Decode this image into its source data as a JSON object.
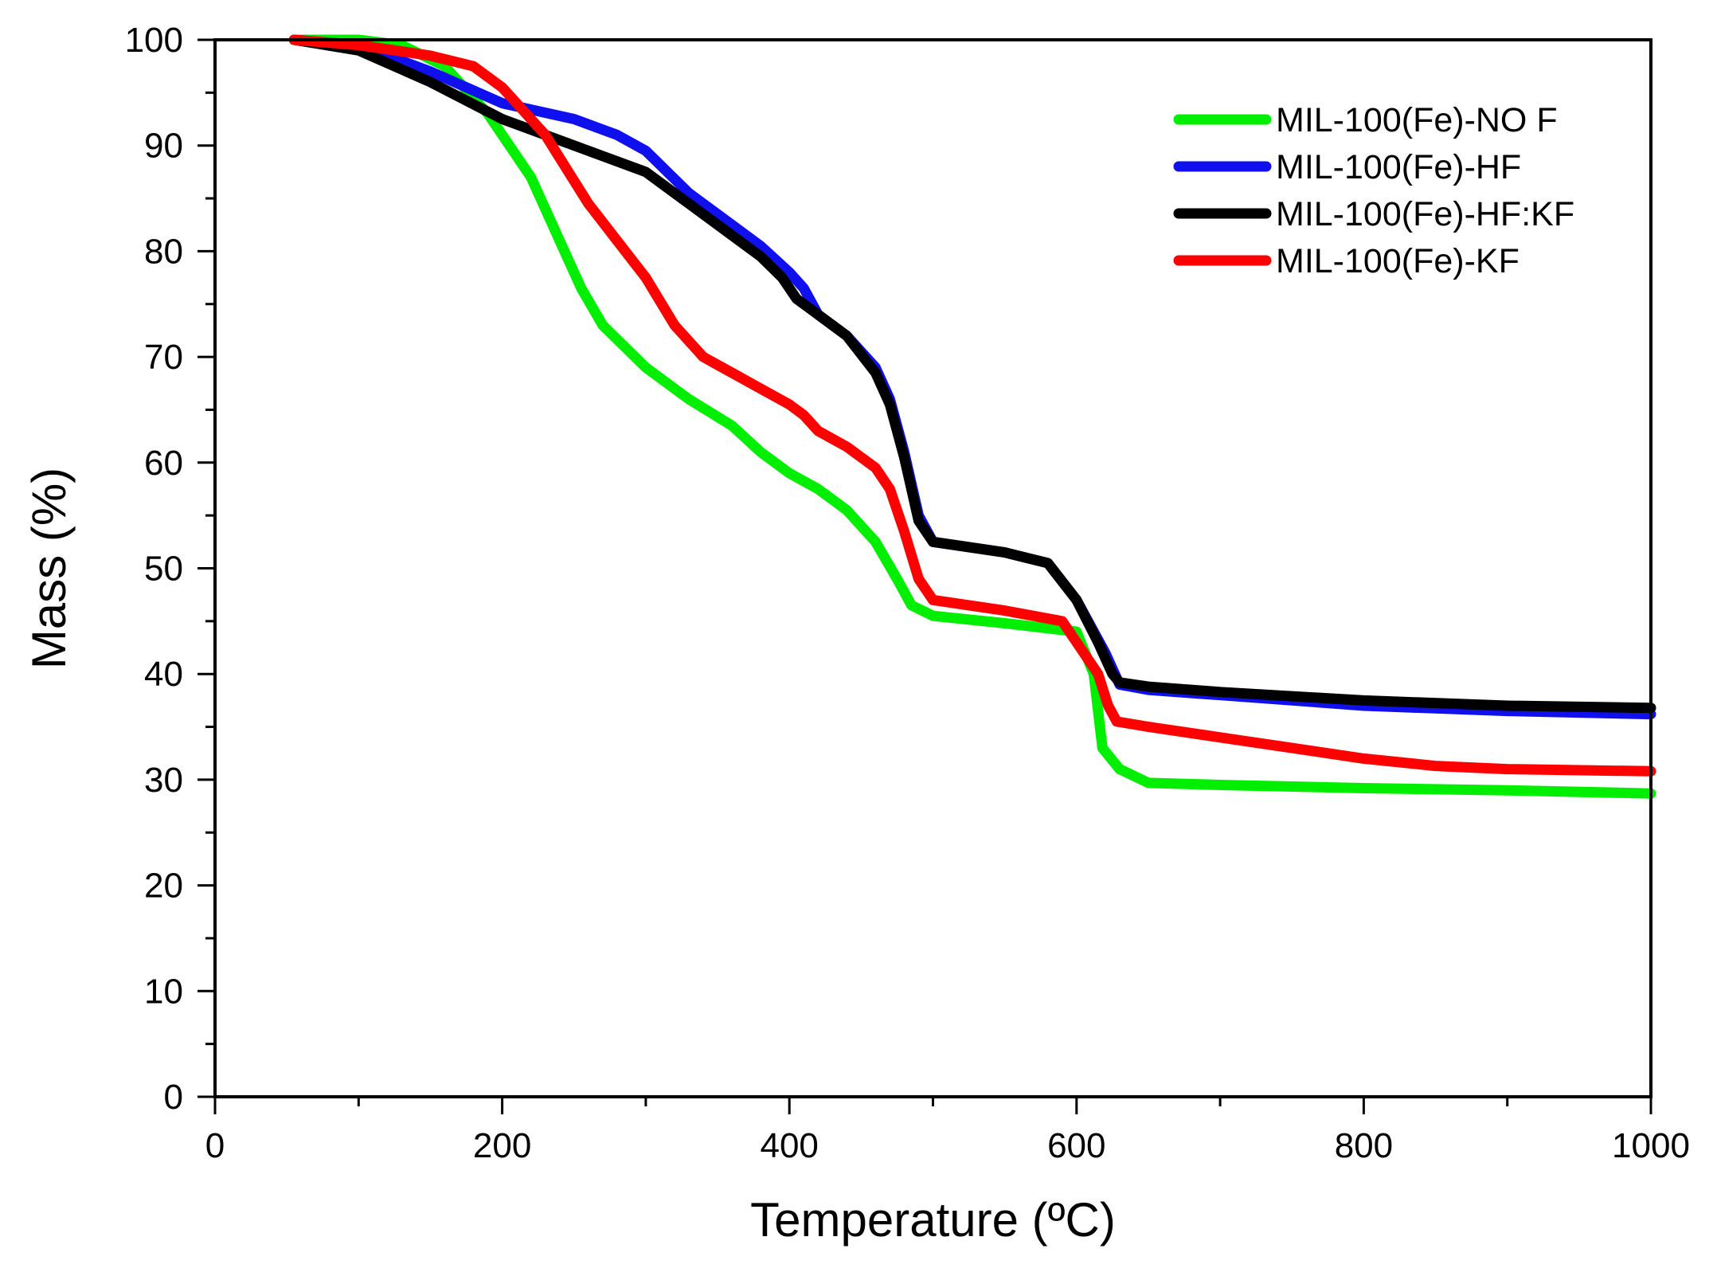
{
  "chart_data": {
    "type": "line",
    "title": "",
    "xlabel": "Temperature (ºC)",
    "ylabel": "Mass (%)",
    "xlim": [
      0,
      1000
    ],
    "ylim": [
      0,
      100
    ],
    "xticks": [
      0,
      200,
      400,
      600,
      800,
      1000
    ],
    "yticks": [
      0,
      10,
      20,
      30,
      40,
      50,
      60,
      70,
      80,
      90,
      100
    ],
    "grid": false,
    "legend_position": "top-right",
    "series": [
      {
        "name": "MIL-100(Fe)-NO F",
        "color": "#00ee00",
        "x": [
          55,
          100,
          130,
          160,
          190,
          200,
          220,
          240,
          255,
          270,
          300,
          330,
          360,
          380,
          400,
          420,
          440,
          460,
          475,
          485,
          500,
          550,
          600,
          612,
          618,
          630,
          650,
          700,
          800,
          900,
          1000
        ],
        "y": [
          100,
          100,
          99.5,
          97.5,
          93,
          91,
          87,
          81,
          76.5,
          73,
          69,
          66,
          63.5,
          61,
          59,
          57.5,
          55.5,
          52.5,
          49,
          46.5,
          45.5,
          44.8,
          44,
          40,
          33,
          31,
          29.7,
          29.5,
          29.2,
          29,
          28.7
        ]
      },
      {
        "name": "MIL-100(Fe)-HF",
        "color": "#1010ee",
        "x": [
          55,
          100,
          150,
          200,
          250,
          280,
          300,
          330,
          360,
          380,
          400,
          410,
          420,
          440,
          460,
          470,
          480,
          490,
          500,
          550,
          580,
          600,
          620,
          630,
          650,
          700,
          800,
          900,
          1000
        ],
        "y": [
          100,
          99.5,
          97,
          94,
          92.5,
          91,
          89.5,
          85.5,
          82.5,
          80.5,
          78,
          76.5,
          74,
          72,
          69,
          66,
          61,
          55,
          52.5,
          51.5,
          50.5,
          47,
          42,
          39,
          38.5,
          38,
          37,
          36.5,
          36.2
        ]
      },
      {
        "name": "MIL-100(Fe)-HF:KF",
        "color": "#000000",
        "x": [
          55,
          100,
          150,
          200,
          250,
          300,
          330,
          360,
          380,
          395,
          405,
          420,
          440,
          460,
          470,
          480,
          490,
          500,
          550,
          580,
          600,
          615,
          625,
          630,
          650,
          700,
          800,
          900,
          1000
        ],
        "y": [
          100,
          99,
          96,
          92.5,
          90,
          87.5,
          84.5,
          81.5,
          79.5,
          77.5,
          75.5,
          74,
          72,
          68.5,
          65.5,
          60.5,
          54.5,
          52.5,
          51.5,
          50.5,
          47,
          43,
          40,
          39.2,
          38.8,
          38.3,
          37.5,
          37,
          36.8
        ]
      },
      {
        "name": "MIL-100(Fe)-KF",
        "color": "#ff0000",
        "x": [
          55,
          100,
          150,
          180,
          200,
          230,
          260,
          300,
          320,
          340,
          360,
          380,
          400,
          410,
          420,
          440,
          460,
          470,
          480,
          490,
          500,
          550,
          590,
          600,
          615,
          622,
          628,
          650,
          700,
          750,
          800,
          850,
          900,
          1000
        ],
        "y": [
          100,
          99.5,
          98.5,
          97.5,
          95.5,
          91,
          84.5,
          77.5,
          73,
          70,
          68.5,
          67,
          65.5,
          64.5,
          63,
          61.5,
          59.5,
          57.5,
          53.5,
          49,
          47,
          46,
          45,
          43,
          40,
          37,
          35.5,
          35,
          34,
          33,
          32,
          31.3,
          31,
          30.8
        ]
      }
    ]
  }
}
